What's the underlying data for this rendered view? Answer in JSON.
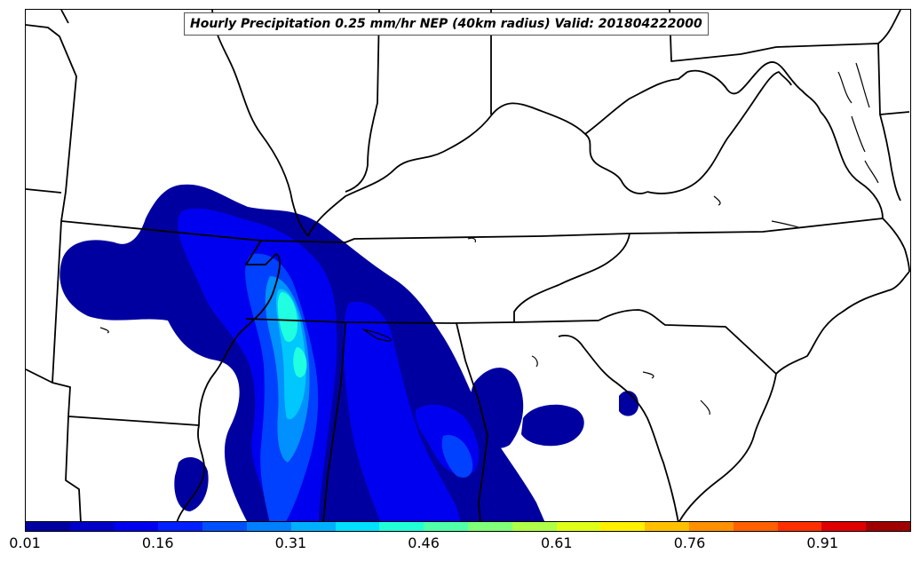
{
  "title": "Hourly Precipitation 0.25 mm/hr NEP (40km radius) Valid: 201804222000",
  "legend": {
    "ticks": [
      "0.01",
      "0.16",
      "0.31",
      "0.46",
      "0.61",
      "0.76",
      "0.91"
    ],
    "range": [
      0.01,
      1.01
    ],
    "colors": [
      "#0000a0",
      "#0000c8",
      "#0000f0",
      "#0020ff",
      "#0050ff",
      "#0080ff",
      "#00b0ff",
      "#00e0ff",
      "#20ffd8",
      "#50ffa8",
      "#80ff78",
      "#b0ff48",
      "#e0ff18",
      "#fff000",
      "#ffc000",
      "#ff9000",
      "#ff6000",
      "#ff3000",
      "#e00000",
      "#a00000"
    ]
  },
  "field_colors": {
    "level1": "#0000a0",
    "level2": "#0000f0",
    "level3": "#0040ff",
    "level4": "#0090ff",
    "level5": "#00c8ff",
    "level6": "#20ffe0"
  }
}
